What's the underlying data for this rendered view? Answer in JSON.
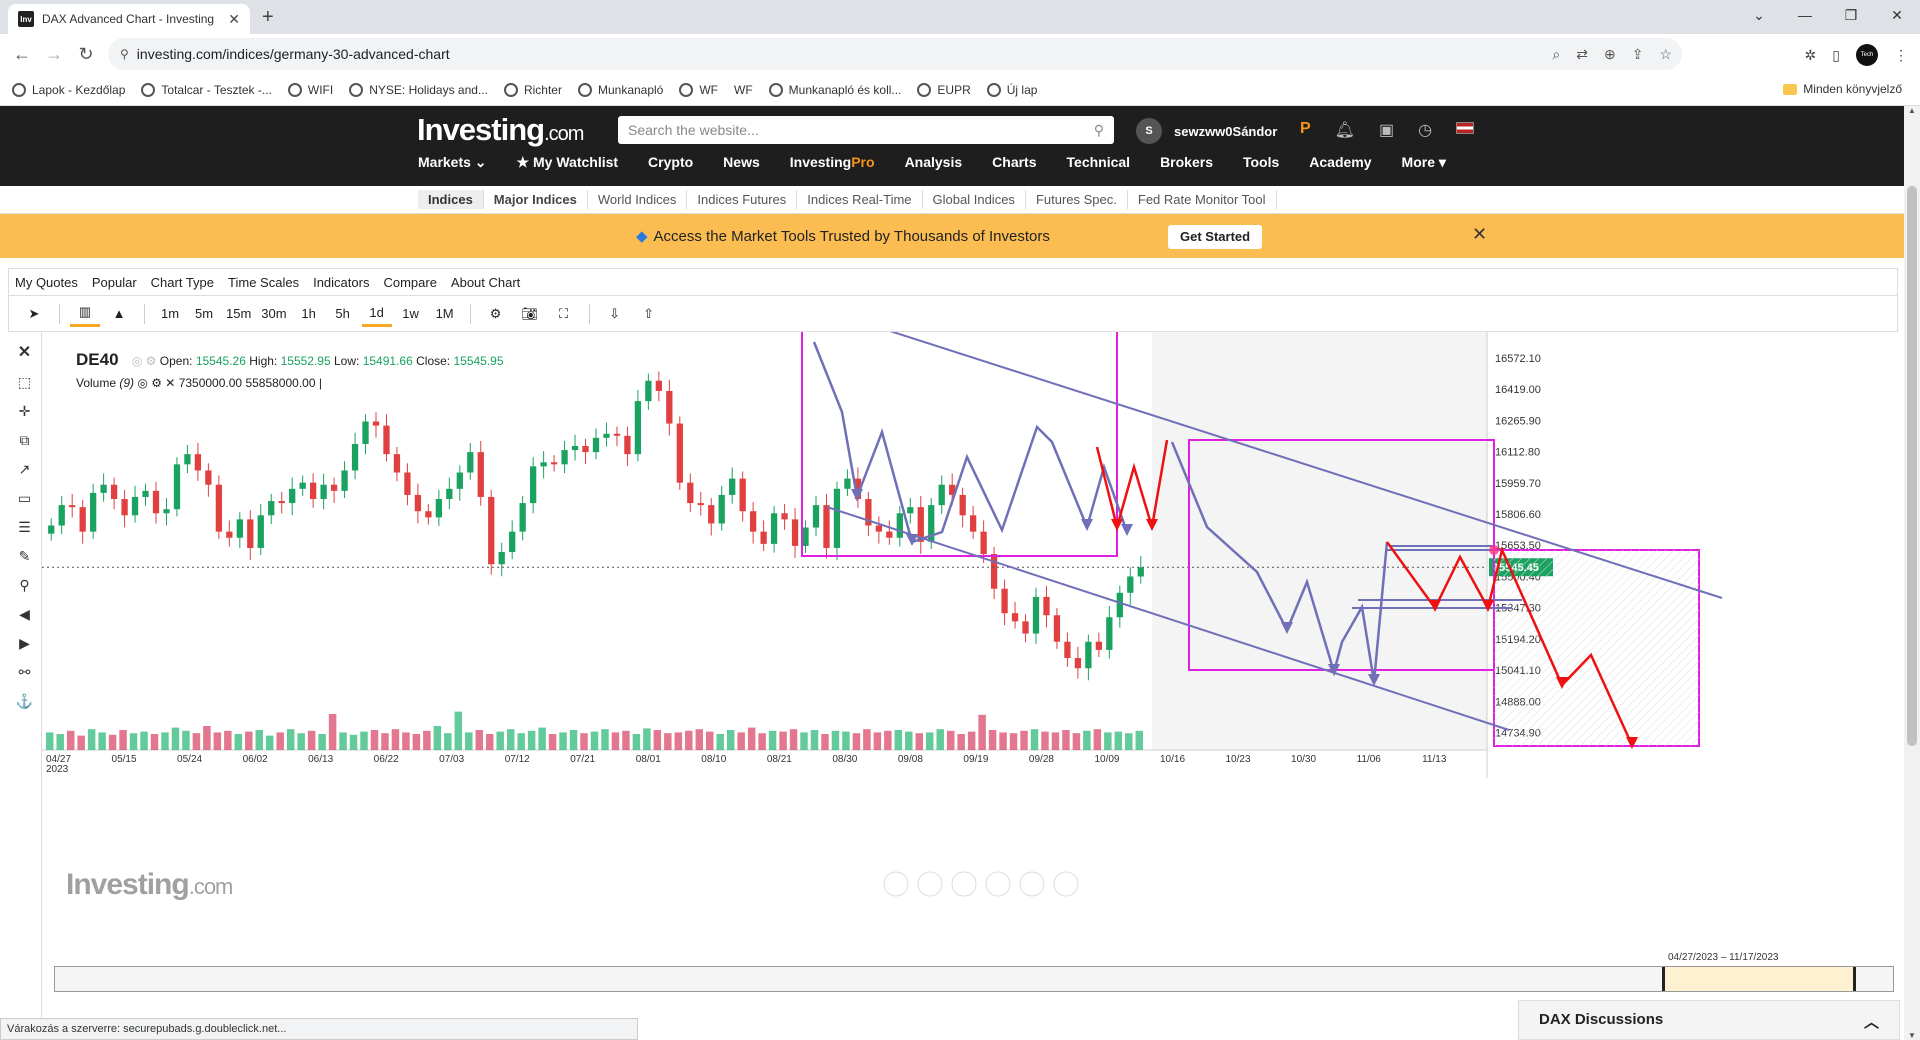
{
  "browser": {
    "tab_title": "DAX Advanced Chart - Investing",
    "url": "investing.com/indices/germany-30-advanced-chart",
    "status_text": "Várakozás a szerverre: securepubads.g.doubleclick.net...",
    "bookmarks": [
      "Lapok - Kezdőlap",
      "Totalcar - Tesztek -...",
      "WIFI",
      "NYSE: Holidays and...",
      "Richter",
      "Munkanapló",
      "WF",
      "WF",
      "Munkanapló és koll...",
      "EUPR",
      "Új lap"
    ],
    "all_bookmarks": "Minden könyvjelző"
  },
  "site": {
    "logo_main": "Investing",
    "logo_suffix": ".com",
    "search_placeholder": "Search the website...",
    "avatar_letter": "S",
    "username": "sewzww0Sándor",
    "nav": [
      "Markets",
      "My Watchlist",
      "Crypto",
      "News",
      "Investing",
      "Pro",
      "Analysis",
      "Charts",
      "Technical",
      "Brokers",
      "Tools",
      "Academy",
      "More"
    ],
    "subnav": [
      "Indices",
      "Major Indices",
      "World Indices",
      "Indices Futures",
      "Indices Real-Time",
      "Global Indices",
      "Futures Spec.",
      "Fed Rate Monitor Tool"
    ],
    "promo_text": "Access the Market Tools Trusted by Thousands of Investors",
    "promo_button": "Get Started",
    "discussions_title": "DAX Discussions"
  },
  "chart_menu": [
    "My Quotes",
    "Popular",
    "Chart Type",
    "Time Scales",
    "Indicators",
    "Compare",
    "About Chart"
  ],
  "timeframes": [
    "1m",
    "5m",
    "15m",
    "30m",
    "1h",
    "5h",
    "1d",
    "1w",
    "1M"
  ],
  "active_timeframe": "1d",
  "legend": {
    "symbol": "DE40",
    "open_label": "Open:",
    "open": "15545.26",
    "high_label": "High:",
    "high": "15552.95",
    "low_label": "Low:",
    "low": "15491.66",
    "close_label": "Close:",
    "close": "15545.95",
    "volume_label": "Volume",
    "volume_period": "(9)",
    "volume_val1": "7350000.00",
    "volume_val2": "55858000.00"
  },
  "watermark": {
    "main": "Investing",
    "suffix": ".com"
  },
  "date_range": "04/27/2023 ‒ 11/17/2023",
  "colors": {
    "up": "#1aa260",
    "down": "#e04040",
    "drawing_box": "#e020e0",
    "drawing_line": "#7070b8",
    "arrow_red": "#ee1111",
    "price_tag": "#1aa260",
    "accent": "#f5a623"
  },
  "chart_data": {
    "type": "candlestick",
    "symbol": "DE40",
    "timeframe": "Daily",
    "ylim": [
      14600,
      16650
    ],
    "y_ticks": [
      "16572.10",
      "16419.00",
      "16265.90",
      "16112.80",
      "15959.70",
      "15806.60",
      "15653.50",
      "15500.40",
      "15347.30",
      "15194.20",
      "15041.10",
      "14888.00",
      "14734.90"
    ],
    "last_price": "15545.45",
    "x_ticks": [
      "04/27",
      "05/15",
      "05/24",
      "06/02",
      "06/13",
      "06/22",
      "07/03",
      "07/12",
      "07/21",
      "08/01",
      "08/10",
      "08/21",
      "08/30",
      "09/08",
      "09/19",
      "09/28",
      "10/09",
      "10/16",
      "10/23",
      "10/30",
      "11/06",
      "11/13"
    ],
    "x_tick_year": "2023",
    "closes": [
      15750,
      15850,
      15840,
      15720,
      15910,
      15950,
      15880,
      15800,
      15890,
      15920,
      15810,
      15830,
      16050,
      16100,
      16020,
      15950,
      15720,
      15690,
      15780,
      15640,
      15800,
      15870,
      15860,
      15930,
      15960,
      15880,
      15950,
      15920,
      16020,
      16150,
      16260,
      16240,
      16100,
      16010,
      15900,
      15820,
      15790,
      15880,
      15930,
      16010,
      16110,
      15890,
      15560,
      15620,
      15720,
      15860,
      16040,
      16060,
      16050,
      16120,
      16140,
      16110,
      16180,
      16200,
      16190,
      16100,
      16360,
      16460,
      16410,
      16250,
      15960,
      15860,
      15850,
      15760,
      15900,
      15980,
      15820,
      15720,
      15660,
      15810,
      15780,
      15650,
      15740,
      15850,
      15640,
      15930,
      15980,
      15880,
      15750,
      15720,
      15690,
      15810,
      15840,
      15670,
      15850,
      15950,
      15900,
      15800,
      15720,
      15610,
      15440,
      15320,
      15280,
      15220,
      15400,
      15310,
      15180,
      15100,
      15050,
      15180,
      15140,
      15300,
      15420,
      15500,
      15545
    ],
    "volumes": [
      22,
      20,
      24,
      18,
      26,
      22,
      19,
      25,
      21,
      23,
      20,
      22,
      28,
      24,
      21,
      30,
      22,
      24,
      20,
      23,
      25,
      18,
      22,
      26,
      21,
      24,
      20,
      45,
      22,
      19,
      23,
      25,
      21,
      26,
      22,
      20,
      24,
      30,
      21,
      48,
      22,
      25,
      20,
      23,
      26,
      21,
      24,
      28,
      20,
      22,
      25,
      21,
      23,
      26,
      22,
      24,
      20,
      27,
      25,
      21,
      22,
      24,
      26,
      23,
      20,
      25,
      22,
      28,
      21,
      24,
      23,
      26,
      22,
      25,
      20,
      24,
      23,
      21,
      26,
      22,
      24,
      25,
      23,
      21,
      22,
      26,
      24,
      20,
      23,
      44,
      25,
      22,
      21,
      24,
      26,
      23,
      22,
      25,
      21,
      24,
      26,
      22,
      23,
      21,
      24
    ]
  }
}
